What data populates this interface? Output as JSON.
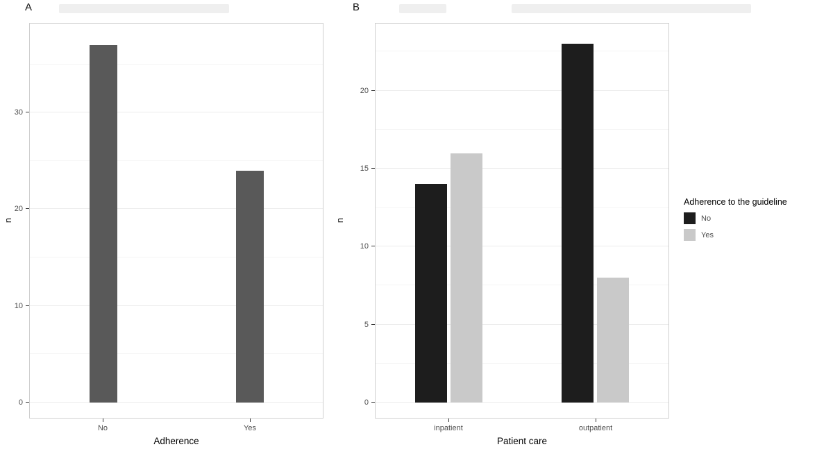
{
  "chart_data": [
    {
      "type": "bar",
      "panel": "A",
      "title": "",
      "categories": [
        "No",
        "Yes"
      ],
      "values": [
        37,
        24
      ],
      "xlabel": "Adherence",
      "ylabel": "n",
      "yticks": [
        0,
        10,
        20,
        30
      ],
      "ylim": [
        0,
        39.2
      ],
      "bar_color": "#595959",
      "grid": true,
      "legend": "none"
    },
    {
      "type": "bar",
      "panel": "B",
      "title": "",
      "categories": [
        "inpatient",
        "outpatient"
      ],
      "series": [
        {
          "name": "No",
          "values": [
            14,
            23
          ],
          "color": "#1d1d1d"
        },
        {
          "name": "Yes",
          "values": [
            16,
            8
          ],
          "color": "#c9c9c9"
        }
      ],
      "xlabel": "Patient care",
      "ylabel": "n",
      "yticks": [
        0,
        5,
        10,
        15,
        20
      ],
      "ylim": [
        0,
        24.3
      ],
      "grid": true,
      "legend_position": "right"
    }
  ],
  "legend": {
    "title": "Adherence to the guideline",
    "items": [
      {
        "label": "No",
        "color": "#1d1d1d"
      },
      {
        "label": "Yes",
        "color": "#c9c9c9"
      }
    ]
  }
}
